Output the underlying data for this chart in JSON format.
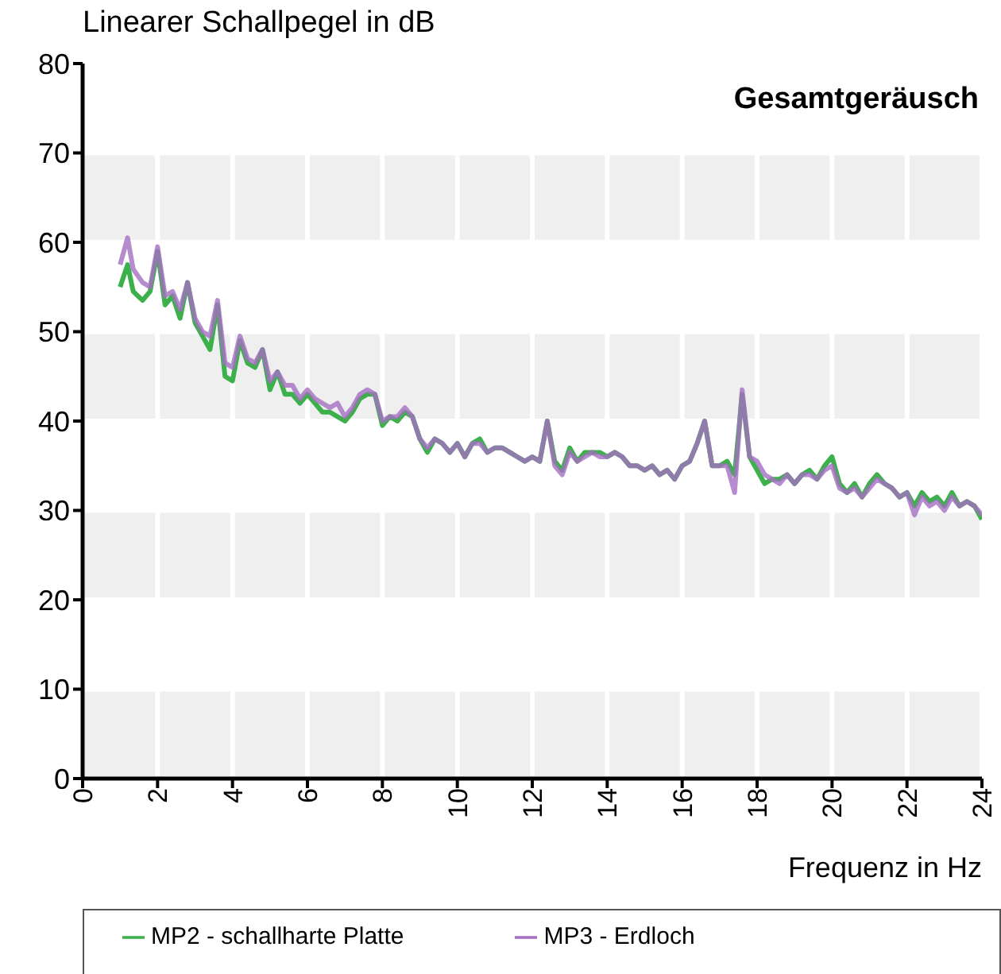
{
  "chart_data": {
    "type": "line",
    "title": "Gesamtgeräusch",
    "ylabel": "Linearer Schallpegel in dB",
    "xlabel": "Frequenz in Hz",
    "x": [
      1.0,
      1.2,
      1.35,
      1.6,
      1.8,
      2.0,
      2.2,
      2.4,
      2.6,
      2.8,
      3.0,
      3.2,
      3.4,
      3.6,
      3.8,
      4.0,
      4.2,
      4.4,
      4.6,
      4.8,
      5.0,
      5.2,
      5.4,
      5.6,
      5.8,
      6.0,
      6.2,
      6.4,
      6.6,
      6.8,
      7.0,
      7.2,
      7.4,
      7.6,
      7.8,
      8.0,
      8.2,
      8.4,
      8.6,
      8.8,
      9.0,
      9.2,
      9.4,
      9.6,
      9.8,
      10.0,
      10.2,
      10.4,
      10.6,
      10.8,
      11.0,
      11.2,
      11.4,
      11.6,
      11.8,
      12.0,
      12.2,
      12.4,
      12.6,
      12.8,
      13.0,
      13.2,
      13.4,
      13.6,
      13.8,
      14.0,
      14.2,
      14.4,
      14.6,
      14.8,
      15.0,
      15.2,
      15.4,
      15.6,
      15.8,
      16.0,
      16.2,
      16.4,
      16.6,
      16.8,
      17.0,
      17.2,
      17.4,
      17.6,
      17.8,
      18.0,
      18.2,
      18.4,
      18.6,
      18.8,
      19.0,
      19.2,
      19.4,
      19.6,
      19.8,
      20.0,
      20.2,
      20.4,
      20.6,
      20.8,
      21.0,
      21.2,
      21.4,
      21.6,
      21.8,
      22.0,
      22.2,
      22.4,
      22.6,
      22.8,
      23.0,
      23.2,
      23.4,
      23.6,
      23.8,
      24.0
    ],
    "series": [
      {
        "name": "MP2 - schallharte Platte",
        "color": "#3cb04a",
        "values": [
          55,
          57.5,
          54.5,
          53.5,
          54.5,
          59,
          53,
          54,
          51.5,
          55.5,
          51,
          49.5,
          48,
          53,
          45,
          44.5,
          49,
          46.5,
          46,
          48,
          43.5,
          45.5,
          43,
          43,
          42,
          43,
          42,
          41,
          41,
          40.5,
          40,
          41,
          42.5,
          43,
          43,
          39.5,
          40.5,
          40,
          41,
          40.5,
          38,
          36.5,
          38,
          37.5,
          36.5,
          37.5,
          36,
          37.5,
          38,
          36.5,
          37,
          37,
          36.5,
          36,
          35.5,
          36,
          35.5,
          40,
          35.5,
          34.5,
          37,
          35.5,
          36.5,
          36.5,
          36.5,
          36,
          36.5,
          36,
          35,
          35,
          34.5,
          35,
          34,
          34.5,
          33.5,
          35,
          35.5,
          37.5,
          40,
          35,
          35,
          35.5,
          34,
          43,
          36,
          34.5,
          33,
          33.5,
          33.5,
          34,
          33,
          34,
          34.5,
          33.5,
          35,
          36,
          33,
          32,
          33,
          31.5,
          33,
          34,
          33,
          32.5,
          31.5,
          32,
          30.5,
          32,
          31,
          31.5,
          30.5,
          32,
          30.5,
          31,
          30.5,
          29
        ]
      },
      {
        "name": "MP3 - Erdloch",
        "color": "#a56fc3",
        "values": [
          57.5,
          60.5,
          57,
          55.5,
          55,
          59.5,
          54,
          54.5,
          52.5,
          55.5,
          51.5,
          50,
          49.5,
          53.5,
          46.5,
          46,
          49.5,
          47,
          46.5,
          48,
          44.5,
          45.5,
          44,
          44,
          42.5,
          43.5,
          42.5,
          42,
          41.5,
          42,
          40.5,
          41.5,
          43,
          43.5,
          43,
          40,
          40.5,
          40.5,
          41.5,
          40.5,
          38,
          37,
          38,
          37.5,
          36.5,
          37.5,
          36,
          37.5,
          37.5,
          36.5,
          37,
          37,
          36.5,
          36,
          35.5,
          36,
          35.5,
          40,
          35,
          34,
          36.5,
          35.5,
          36,
          36.5,
          36,
          36,
          36.5,
          36,
          35,
          35,
          34.5,
          35,
          34,
          34.5,
          33.5,
          35,
          35.5,
          37.5,
          40,
          35,
          35,
          35,
          32,
          43.5,
          36,
          35.5,
          34,
          33.5,
          33,
          34,
          33,
          34,
          34,
          33.5,
          34.5,
          35,
          32.5,
          32,
          32.5,
          31.5,
          32.5,
          33.5,
          33,
          32.5,
          31.5,
          32,
          29.5,
          31.5,
          30.5,
          31,
          30,
          31.5,
          30.5,
          31,
          30.5,
          29.5
        ]
      }
    ],
    "xlim": [
      0,
      24
    ],
    "xticks": [
      0,
      2,
      4,
      6,
      8,
      10,
      12,
      14,
      16,
      18,
      20,
      22,
      24
    ],
    "ylim": [
      0,
      80
    ],
    "yticks": [
      0,
      10,
      20,
      30,
      40,
      50,
      60,
      70,
      80
    ],
    "grid": true,
    "legend": "bottom"
  }
}
